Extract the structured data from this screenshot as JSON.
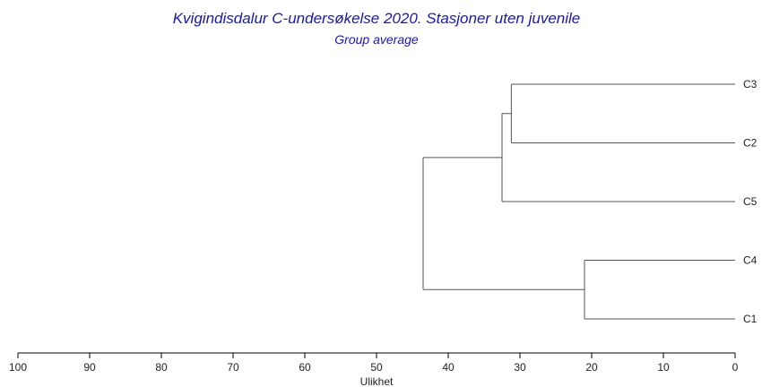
{
  "chart_data": {
    "type": "dendrogram",
    "title": "Kvigindisdalur C-undersøkelse 2020. Stasjoner uten juvenile",
    "subtitle": "Group average",
    "xlabel": "Ulikhet",
    "xlim": [
      100,
      0
    ],
    "x_ticks": [
      100,
      90,
      80,
      70,
      60,
      50,
      40,
      30,
      20,
      10,
      0
    ],
    "leaves": [
      "C3",
      "C2",
      "C5",
      "C4",
      "C1"
    ],
    "merges": [
      {
        "name": "C3+C2",
        "children": [
          "C3",
          "C2"
        ],
        "height": 31.2
      },
      {
        "name": "C3+C2+C5",
        "children": [
          "C3+C2",
          "C5"
        ],
        "height": 32.5
      },
      {
        "name": "C4+C1",
        "children": [
          "C4",
          "C1"
        ],
        "height": 21.0
      },
      {
        "name": "all",
        "children": [
          "C3+C2+C5",
          "C4+C1"
        ],
        "height": 43.5
      }
    ]
  }
}
